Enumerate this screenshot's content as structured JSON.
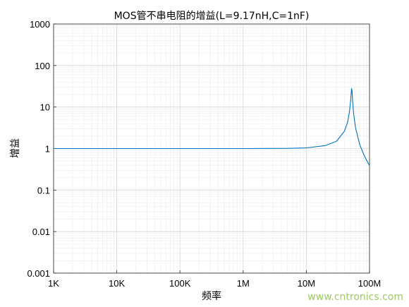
{
  "chart_data": {
    "type": "line",
    "title": "MOS管不串电阻的增益(L=9.17nH,C=1nF)",
    "xlabel": "频率",
    "ylabel": "增益",
    "xscale": "log",
    "yscale": "log",
    "xlim": [
      1000,
      100000000
    ],
    "ylim": [
      0.001,
      1000
    ],
    "x_tick_labels": [
      "1K",
      "10K",
      "100K",
      "1M",
      "10M",
      "100M"
    ],
    "y_tick_labels": [
      "0.001",
      "0.01",
      "0.1",
      "1",
      "10",
      "100",
      "1000"
    ],
    "grid": true,
    "series": [
      {
        "color": "#0072BD",
        "x": [
          1000,
          10000,
          100000,
          1000000,
          5000000,
          10000000,
          20000000,
          30000000,
          40000000,
          45000000,
          48000000,
          50000000,
          51000000,
          52000000,
          53000000,
          54000000,
          56000000,
          60000000,
          70000000,
          80000000,
          90000000,
          100000000
        ],
        "y": [
          1.0,
          1.0,
          1.0,
          1.0,
          1.01,
          1.04,
          1.18,
          1.5,
          2.6,
          4.3,
          7.5,
          13,
          19,
          28,
          24,
          14,
          7,
          3.2,
          1.25,
          0.75,
          0.52,
          0.39
        ]
      }
    ]
  },
  "watermark": "www.cntronics.com"
}
